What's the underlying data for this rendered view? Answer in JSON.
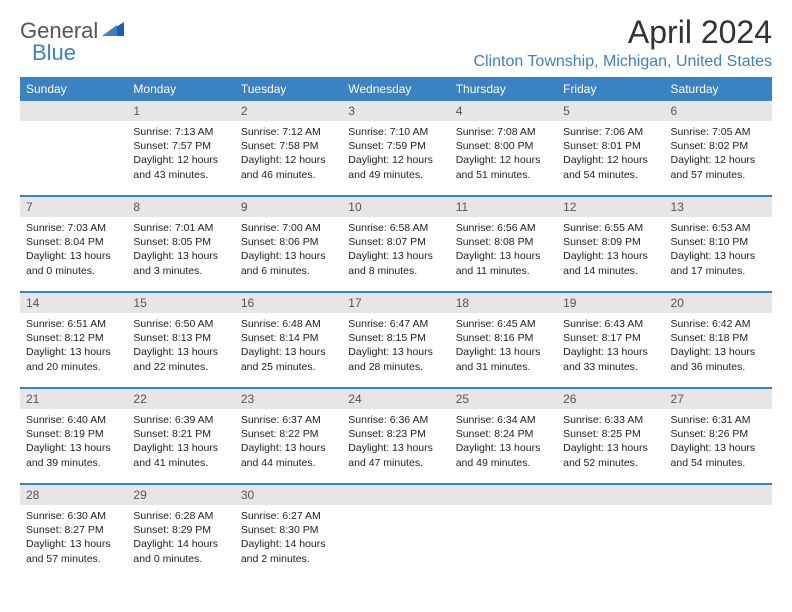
{
  "logo": {
    "word1": "General",
    "word2": "Blue"
  },
  "title": "April 2024",
  "location": "Clinton Township, Michigan, United States",
  "colors": {
    "accent": "#3b82c4",
    "header_bg": "#3b82c4",
    "header_text": "#ffffff",
    "daynum_bg": "#e6e6e6",
    "text": "#222222"
  },
  "typography": {
    "title_fontsize": 32,
    "location_fontsize": 16,
    "dayheader_fontsize": 12,
    "body_fontsize": 10.5
  },
  "calendar": {
    "type": "table",
    "days_of_week": [
      "Sunday",
      "Monday",
      "Tuesday",
      "Wednesday",
      "Thursday",
      "Friday",
      "Saturday"
    ],
    "weeks": [
      [
        null,
        {
          "n": "1",
          "sr": "Sunrise: 7:13 AM",
          "ss": "Sunset: 7:57 PM",
          "dl1": "Daylight: 12 hours",
          "dl2": "and 43 minutes."
        },
        {
          "n": "2",
          "sr": "Sunrise: 7:12 AM",
          "ss": "Sunset: 7:58 PM",
          "dl1": "Daylight: 12 hours",
          "dl2": "and 46 minutes."
        },
        {
          "n": "3",
          "sr": "Sunrise: 7:10 AM",
          "ss": "Sunset: 7:59 PM",
          "dl1": "Daylight: 12 hours",
          "dl2": "and 49 minutes."
        },
        {
          "n": "4",
          "sr": "Sunrise: 7:08 AM",
          "ss": "Sunset: 8:00 PM",
          "dl1": "Daylight: 12 hours",
          "dl2": "and 51 minutes."
        },
        {
          "n": "5",
          "sr": "Sunrise: 7:06 AM",
          "ss": "Sunset: 8:01 PM",
          "dl1": "Daylight: 12 hours",
          "dl2": "and 54 minutes."
        },
        {
          "n": "6",
          "sr": "Sunrise: 7:05 AM",
          "ss": "Sunset: 8:02 PM",
          "dl1": "Daylight: 12 hours",
          "dl2": "and 57 minutes."
        }
      ],
      [
        {
          "n": "7",
          "sr": "Sunrise: 7:03 AM",
          "ss": "Sunset: 8:04 PM",
          "dl1": "Daylight: 13 hours",
          "dl2": "and 0 minutes."
        },
        {
          "n": "8",
          "sr": "Sunrise: 7:01 AM",
          "ss": "Sunset: 8:05 PM",
          "dl1": "Daylight: 13 hours",
          "dl2": "and 3 minutes."
        },
        {
          "n": "9",
          "sr": "Sunrise: 7:00 AM",
          "ss": "Sunset: 8:06 PM",
          "dl1": "Daylight: 13 hours",
          "dl2": "and 6 minutes."
        },
        {
          "n": "10",
          "sr": "Sunrise: 6:58 AM",
          "ss": "Sunset: 8:07 PM",
          "dl1": "Daylight: 13 hours",
          "dl2": "and 8 minutes."
        },
        {
          "n": "11",
          "sr": "Sunrise: 6:56 AM",
          "ss": "Sunset: 8:08 PM",
          "dl1": "Daylight: 13 hours",
          "dl2": "and 11 minutes."
        },
        {
          "n": "12",
          "sr": "Sunrise: 6:55 AM",
          "ss": "Sunset: 8:09 PM",
          "dl1": "Daylight: 13 hours",
          "dl2": "and 14 minutes."
        },
        {
          "n": "13",
          "sr": "Sunrise: 6:53 AM",
          "ss": "Sunset: 8:10 PM",
          "dl1": "Daylight: 13 hours",
          "dl2": "and 17 minutes."
        }
      ],
      [
        {
          "n": "14",
          "sr": "Sunrise: 6:51 AM",
          "ss": "Sunset: 8:12 PM",
          "dl1": "Daylight: 13 hours",
          "dl2": "and 20 minutes."
        },
        {
          "n": "15",
          "sr": "Sunrise: 6:50 AM",
          "ss": "Sunset: 8:13 PM",
          "dl1": "Daylight: 13 hours",
          "dl2": "and 22 minutes."
        },
        {
          "n": "16",
          "sr": "Sunrise: 6:48 AM",
          "ss": "Sunset: 8:14 PM",
          "dl1": "Daylight: 13 hours",
          "dl2": "and 25 minutes."
        },
        {
          "n": "17",
          "sr": "Sunrise: 6:47 AM",
          "ss": "Sunset: 8:15 PM",
          "dl1": "Daylight: 13 hours",
          "dl2": "and 28 minutes."
        },
        {
          "n": "18",
          "sr": "Sunrise: 6:45 AM",
          "ss": "Sunset: 8:16 PM",
          "dl1": "Daylight: 13 hours",
          "dl2": "and 31 minutes."
        },
        {
          "n": "19",
          "sr": "Sunrise: 6:43 AM",
          "ss": "Sunset: 8:17 PM",
          "dl1": "Daylight: 13 hours",
          "dl2": "and 33 minutes."
        },
        {
          "n": "20",
          "sr": "Sunrise: 6:42 AM",
          "ss": "Sunset: 8:18 PM",
          "dl1": "Daylight: 13 hours",
          "dl2": "and 36 minutes."
        }
      ],
      [
        {
          "n": "21",
          "sr": "Sunrise: 6:40 AM",
          "ss": "Sunset: 8:19 PM",
          "dl1": "Daylight: 13 hours",
          "dl2": "and 39 minutes."
        },
        {
          "n": "22",
          "sr": "Sunrise: 6:39 AM",
          "ss": "Sunset: 8:21 PM",
          "dl1": "Daylight: 13 hours",
          "dl2": "and 41 minutes."
        },
        {
          "n": "23",
          "sr": "Sunrise: 6:37 AM",
          "ss": "Sunset: 8:22 PM",
          "dl1": "Daylight: 13 hours",
          "dl2": "and 44 minutes."
        },
        {
          "n": "24",
          "sr": "Sunrise: 6:36 AM",
          "ss": "Sunset: 8:23 PM",
          "dl1": "Daylight: 13 hours",
          "dl2": "and 47 minutes."
        },
        {
          "n": "25",
          "sr": "Sunrise: 6:34 AM",
          "ss": "Sunset: 8:24 PM",
          "dl1": "Daylight: 13 hours",
          "dl2": "and 49 minutes."
        },
        {
          "n": "26",
          "sr": "Sunrise: 6:33 AM",
          "ss": "Sunset: 8:25 PM",
          "dl1": "Daylight: 13 hours",
          "dl2": "and 52 minutes."
        },
        {
          "n": "27",
          "sr": "Sunrise: 6:31 AM",
          "ss": "Sunset: 8:26 PM",
          "dl1": "Daylight: 13 hours",
          "dl2": "and 54 minutes."
        }
      ],
      [
        {
          "n": "28",
          "sr": "Sunrise: 6:30 AM",
          "ss": "Sunset: 8:27 PM",
          "dl1": "Daylight: 13 hours",
          "dl2": "and 57 minutes."
        },
        {
          "n": "29",
          "sr": "Sunrise: 6:28 AM",
          "ss": "Sunset: 8:29 PM",
          "dl1": "Daylight: 14 hours",
          "dl2": "and 0 minutes."
        },
        {
          "n": "30",
          "sr": "Sunrise: 6:27 AM",
          "ss": "Sunset: 8:30 PM",
          "dl1": "Daylight: 14 hours",
          "dl2": "and 2 minutes."
        },
        null,
        null,
        null,
        null
      ]
    ]
  }
}
